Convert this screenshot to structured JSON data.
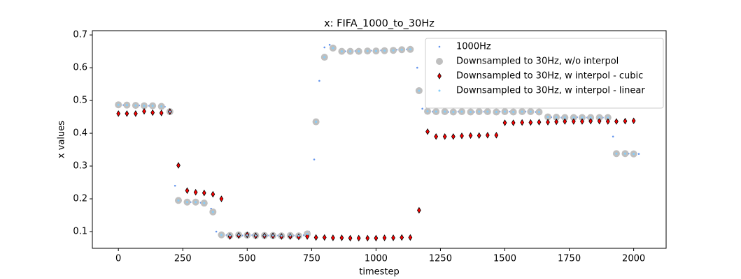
{
  "chart_data": {
    "type": "scatter",
    "title": "x: FIFA_1000_to_30Hz",
    "x_label": "timestep",
    "y_label": "x values",
    "xlim": [
      -101,
      2126
    ],
    "ylim": [
      0.049,
      0.713
    ],
    "xticks": [
      0,
      250,
      500,
      750,
      1000,
      1250,
      1500,
      1750,
      2000
    ],
    "yticks": [
      0.1,
      0.2,
      0.3,
      0.4,
      0.5,
      0.6,
      0.7
    ],
    "legend": "upper right",
    "series": [
      {
        "name": "1000Hz",
        "color": "#6495ed",
        "marker": "o",
        "size": 1.3,
        "x": [
          0,
          20,
          40,
          60,
          80,
          100,
          120,
          140,
          160,
          180,
          200,
          220,
          240,
          260,
          280,
          300,
          320,
          340,
          360,
          380,
          400,
          420,
          440,
          460,
          480,
          500,
          520,
          540,
          560,
          580,
          600,
          620,
          640,
          660,
          680,
          700,
          720,
          740,
          760,
          780,
          800,
          820,
          840,
          860,
          880,
          900,
          920,
          940,
          960,
          980,
          1000,
          1020,
          1040,
          1060,
          1080,
          1100,
          1120,
          1140,
          1160,
          1180,
          1200,
          1220,
          1240,
          1260,
          1280,
          1300,
          1320,
          1340,
          1360,
          1380,
          1400,
          1420,
          1440,
          1460,
          1480,
          1500,
          1520,
          1540,
          1560,
          1580,
          1600,
          1620,
          1640,
          1660,
          1680,
          1700,
          1720,
          1740,
          1760,
          1780,
          1800,
          1820,
          1840,
          1860,
          1880,
          1900,
          1920,
          1940,
          1960,
          1980,
          2000,
          2020
        ],
        "values": [
          0.487,
          0.486,
          0.486,
          0.485,
          0.485,
          0.484,
          0.484,
          0.483,
          0.482,
          0.481,
          0.46,
          0.24,
          0.194,
          0.191,
          0.19,
          0.189,
          0.188,
          0.186,
          0.17,
          0.1,
          0.09,
          0.089,
          0.089,
          0.088,
          0.088,
          0.088,
          0.089,
          0.088,
          0.087,
          0.088,
          0.088,
          0.088,
          0.087,
          0.087,
          0.088,
          0.088,
          0.089,
          0.1,
          0.32,
          0.56,
          0.662,
          0.67,
          0.656,
          0.651,
          0.65,
          0.65,
          0.651,
          0.651,
          0.65,
          0.652,
          0.652,
          0.653,
          0.653,
          0.654,
          0.655,
          0.655,
          0.656,
          0.655,
          0.6,
          0.475,
          0.467,
          0.466,
          0.466,
          0.465,
          0.465,
          0.465,
          0.466,
          0.466,
          0.465,
          0.465,
          0.466,
          0.466,
          0.465,
          0.465,
          0.466,
          0.466,
          0.466,
          0.465,
          0.465,
          0.466,
          0.466,
          0.465,
          0.462,
          0.452,
          0.449,
          0.449,
          0.448,
          0.448,
          0.448,
          0.449,
          0.449,
          0.448,
          0.448,
          0.448,
          0.448,
          0.447,
          0.39,
          0.34,
          0.338,
          0.338,
          0.337,
          0.337
        ]
      },
      {
        "name": "Downsampled to 30Hz, w/o interpol",
        "color": "#bfbfbf",
        "marker": "o",
        "size": 5,
        "x": [
          0,
          33,
          67,
          100,
          133,
          167,
          200,
          233,
          267,
          300,
          333,
          367,
          400,
          433,
          467,
          500,
          533,
          567,
          600,
          633,
          667,
          700,
          733,
          767,
          800,
          833,
          867,
          900,
          933,
          967,
          1000,
          1033,
          1067,
          1100,
          1133,
          1167,
          1200,
          1233,
          1267,
          1300,
          1333,
          1367,
          1400,
          1433,
          1467,
          1500,
          1533,
          1567,
          1600,
          1633,
          1667,
          1700,
          1733,
          1767,
          1800,
          1833,
          1867,
          1900,
          1933,
          1967,
          2000
        ],
        "values": [
          0.487,
          0.486,
          0.485,
          0.484,
          0.484,
          0.482,
          0.466,
          0.195,
          0.19,
          0.19,
          0.187,
          0.16,
          0.09,
          0.088,
          0.09,
          0.089,
          0.088,
          0.088,
          0.088,
          0.087,
          0.088,
          0.087,
          0.093,
          0.435,
          0.632,
          0.66,
          0.65,
          0.65,
          0.65,
          0.651,
          0.651,
          0.652,
          0.653,
          0.655,
          0.656,
          0.53,
          0.467,
          0.466,
          0.466,
          0.465,
          0.466,
          0.465,
          0.466,
          0.466,
          0.465,
          0.466,
          0.465,
          0.466,
          0.466,
          0.465,
          0.45,
          0.449,
          0.448,
          0.448,
          0.448,
          0.448,
          0.448,
          0.448,
          0.338,
          0.338,
          0.337
        ]
      },
      {
        "name": "Downsampled to 30Hz, w interpol - cubic",
        "color": "#ff0000",
        "marker": "d",
        "size": 4,
        "x": [
          0,
          33,
          67,
          100,
          133,
          167,
          200,
          233,
          267,
          300,
          333,
          367,
          400,
          433,
          467,
          500,
          533,
          567,
          600,
          633,
          667,
          700,
          733,
          767,
          800,
          833,
          867,
          900,
          933,
          967,
          1000,
          1033,
          1067,
          1100,
          1133,
          1167,
          1200,
          1233,
          1267,
          1300,
          1333,
          1367,
          1400,
          1433,
          1467,
          1500,
          1533,
          1567,
          1600,
          1633,
          1667,
          1700,
          1733,
          1767,
          1800,
          1833,
          1867,
          1900,
          1933,
          1967,
          2000
        ],
        "values": [
          0.46,
          0.46,
          0.46,
          0.467,
          0.463,
          0.462,
          0.466,
          0.302,
          0.225,
          0.22,
          0.218,
          0.214,
          0.2,
          0.085,
          0.088,
          0.09,
          0.087,
          0.087,
          0.087,
          0.085,
          0.085,
          0.084,
          0.085,
          0.082,
          0.082,
          0.081,
          0.081,
          0.08,
          0.08,
          0.08,
          0.08,
          0.081,
          0.081,
          0.082,
          0.082,
          0.165,
          0.405,
          0.39,
          0.39,
          0.39,
          0.392,
          0.393,
          0.393,
          0.394,
          0.394,
          0.432,
          0.432,
          0.433,
          0.433,
          0.434,
          0.434,
          0.435,
          0.436,
          0.436,
          0.436,
          0.437,
          0.437,
          0.436,
          0.436,
          0.437,
          0.438
        ]
      },
      {
        "name": "Downsampled to 30Hz, w interpol - linear",
        "color": "#87cefa",
        "marker": "o",
        "size": 1.5,
        "x": [
          0,
          33,
          67,
          100,
          133,
          167,
          200,
          233,
          267,
          300,
          333,
          367,
          400,
          433,
          467,
          500,
          533,
          567,
          600,
          633,
          667,
          700,
          733,
          767,
          800,
          833,
          867,
          900,
          933,
          967,
          1000,
          1033,
          1067,
          1100,
          1133,
          1167,
          1200,
          1233,
          1267,
          1300,
          1333,
          1367,
          1400,
          1433,
          1467,
          1500,
          1533,
          1567,
          1600,
          1633,
          1667,
          1700,
          1733,
          1767,
          1800,
          1833,
          1867,
          1900,
          1933,
          1967,
          2000
        ],
        "values": [
          0.487,
          0.486,
          0.485,
          0.484,
          0.484,
          0.482,
          0.466,
          0.195,
          0.19,
          0.19,
          0.187,
          0.16,
          0.09,
          0.088,
          0.09,
          0.089,
          0.088,
          0.088,
          0.088,
          0.087,
          0.088,
          0.087,
          0.093,
          0.435,
          0.632,
          0.66,
          0.65,
          0.65,
          0.65,
          0.651,
          0.651,
          0.652,
          0.653,
          0.655,
          0.656,
          0.53,
          0.467,
          0.466,
          0.466,
          0.465,
          0.466,
          0.465,
          0.466,
          0.466,
          0.465,
          0.466,
          0.465,
          0.466,
          0.466,
          0.465,
          0.45,
          0.449,
          0.448,
          0.448,
          0.448,
          0.448,
          0.448,
          0.448,
          0.338,
          0.338,
          0.337
        ]
      }
    ]
  }
}
